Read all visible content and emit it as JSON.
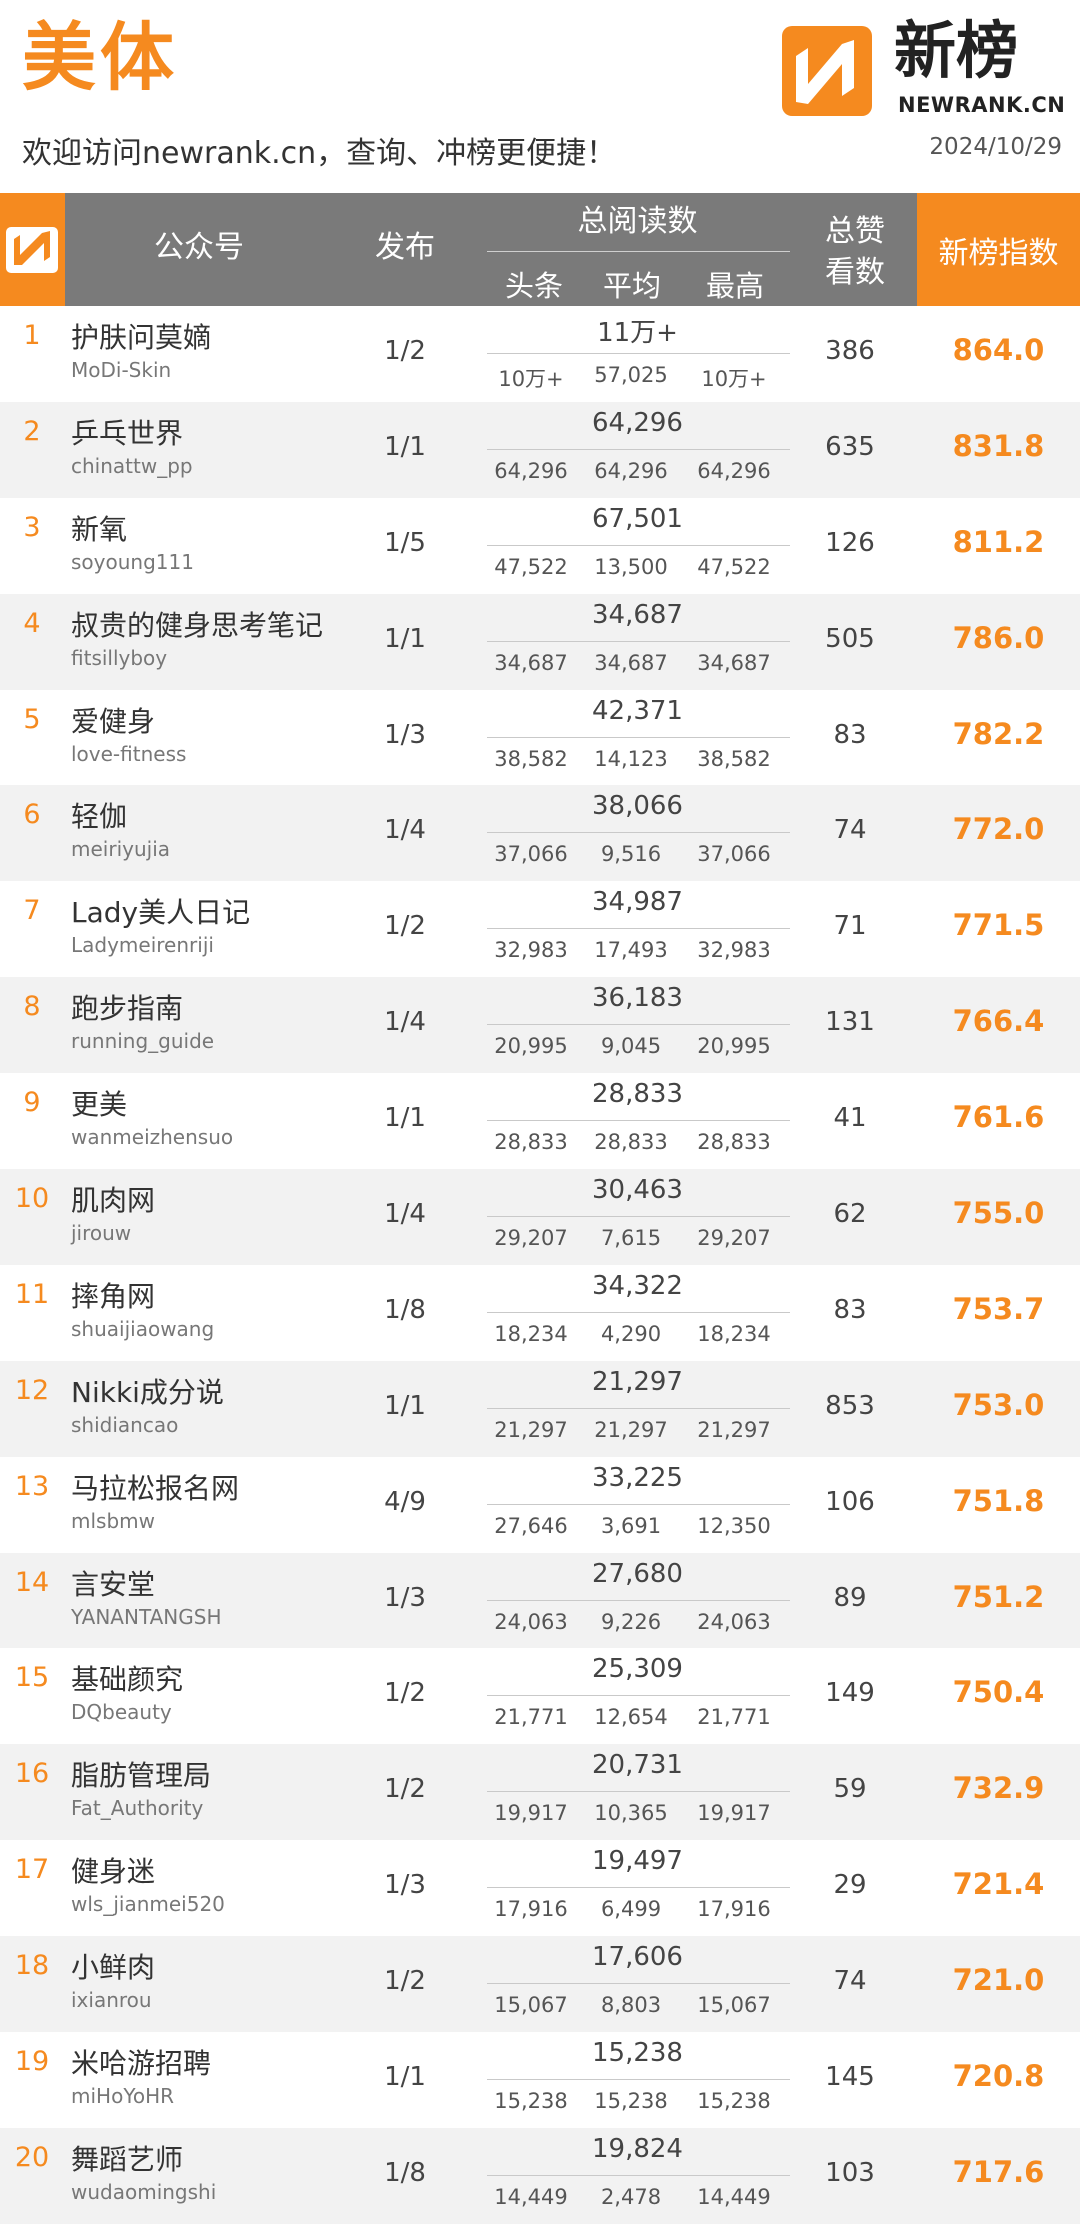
{
  "header": {
    "category": "美体",
    "slogan": "欢迎访问newrank.cn，查询、冲榜更便捷！",
    "date": "2024/10/29",
    "logo_cn": "新榜",
    "logo_en": "NEWRANK.CN"
  },
  "columns": {
    "account": "公众号",
    "publish": "发布",
    "reads": "总阅读数",
    "reads_head": "头条",
    "reads_avg": "平均",
    "reads_max": "最高",
    "likes_l1": "总赞",
    "likes_l2": "看数",
    "index": "新榜指数"
  },
  "colors": {
    "accent": "#f58a1f",
    "header_bg": "#7a7a7a",
    "row_alt": "#f2f2f2"
  },
  "rows": [
    {
      "rank": "1",
      "name": "护肤问莫嫡",
      "account": "MoDi-Skin",
      "publish": "1/2",
      "total": "11万+",
      "head": "10万+",
      "avg": "57,025",
      "max": "10万+",
      "likes": "386",
      "index": "864.0"
    },
    {
      "rank": "2",
      "name": "乒乓世界",
      "account": "chinattw_pp",
      "publish": "1/1",
      "total": "64,296",
      "head": "64,296",
      "avg": "64,296",
      "max": "64,296",
      "likes": "635",
      "index": "831.8"
    },
    {
      "rank": "3",
      "name": "新氧",
      "account": "soyoung111",
      "publish": "1/5",
      "total": "67,501",
      "head": "47,522",
      "avg": "13,500",
      "max": "47,522",
      "likes": "126",
      "index": "811.2"
    },
    {
      "rank": "4",
      "name": "叔贵的健身思考笔记",
      "account": "fitsillyboy",
      "publish": "1/1",
      "total": "34,687",
      "head": "34,687",
      "avg": "34,687",
      "max": "34,687",
      "likes": "505",
      "index": "786.0"
    },
    {
      "rank": "5",
      "name": "爱健身",
      "account": "love-fitness",
      "publish": "1/3",
      "total": "42,371",
      "head": "38,582",
      "avg": "14,123",
      "max": "38,582",
      "likes": "83",
      "index": "782.2"
    },
    {
      "rank": "6",
      "name": "轻伽",
      "account": "meiriyujia",
      "publish": "1/4",
      "total": "38,066",
      "head": "37,066",
      "avg": "9,516",
      "max": "37,066",
      "likes": "74",
      "index": "772.0"
    },
    {
      "rank": "7",
      "name": "Lady美人日记",
      "account": "Ladymeirenriji",
      "publish": "1/2",
      "total": "34,987",
      "head": "32,983",
      "avg": "17,493",
      "max": "32,983",
      "likes": "71",
      "index": "771.5"
    },
    {
      "rank": "8",
      "name": "跑步指南",
      "account": "running_guide",
      "publish": "1/4",
      "total": "36,183",
      "head": "20,995",
      "avg": "9,045",
      "max": "20,995",
      "likes": "131",
      "index": "766.4"
    },
    {
      "rank": "9",
      "name": "更美",
      "account": "wanmeizhensuo",
      "publish": "1/1",
      "total": "28,833",
      "head": "28,833",
      "avg": "28,833",
      "max": "28,833",
      "likes": "41",
      "index": "761.6"
    },
    {
      "rank": "10",
      "name": "肌肉网",
      "account": "jirouw",
      "publish": "1/4",
      "total": "30,463",
      "head": "29,207",
      "avg": "7,615",
      "max": "29,207",
      "likes": "62",
      "index": "755.0"
    },
    {
      "rank": "11",
      "name": "摔角网",
      "account": "shuaijiaowang",
      "publish": "1/8",
      "total": "34,322",
      "head": "18,234",
      "avg": "4,290",
      "max": "18,234",
      "likes": "83",
      "index": "753.7"
    },
    {
      "rank": "12",
      "name": "Nikki成分说",
      "account": "shidiancao",
      "publish": "1/1",
      "total": "21,297",
      "head": "21,297",
      "avg": "21,297",
      "max": "21,297",
      "likes": "853",
      "index": "753.0"
    },
    {
      "rank": "13",
      "name": "马拉松报名网",
      "account": "mlsbmw",
      "publish": "4/9",
      "total": "33,225",
      "head": "27,646",
      "avg": "3,691",
      "max": "12,350",
      "likes": "106",
      "index": "751.8"
    },
    {
      "rank": "14",
      "name": "言安堂",
      "account": "YANANTANGSH",
      "publish": "1/3",
      "total": "27,680",
      "head": "24,063",
      "avg": "9,226",
      "max": "24,063",
      "likes": "89",
      "index": "751.2"
    },
    {
      "rank": "15",
      "name": "基础颜究",
      "account": "DQbeauty",
      "publish": "1/2",
      "total": "25,309",
      "head": "21,771",
      "avg": "12,654",
      "max": "21,771",
      "likes": "149",
      "index": "750.4"
    },
    {
      "rank": "16",
      "name": "脂肪管理局",
      "account": "Fat_Authority",
      "publish": "1/2",
      "total": "20,731",
      "head": "19,917",
      "avg": "10,365",
      "max": "19,917",
      "likes": "59",
      "index": "732.9"
    },
    {
      "rank": "17",
      "name": "健身迷",
      "account": "wls_jianmei520",
      "publish": "1/3",
      "total": "19,497",
      "head": "17,916",
      "avg": "6,499",
      "max": "17,916",
      "likes": "29",
      "index": "721.4"
    },
    {
      "rank": "18",
      "name": "小鲜肉",
      "account": "ixianrou",
      "publish": "1/2",
      "total": "17,606",
      "head": "15,067",
      "avg": "8,803",
      "max": "15,067",
      "likes": "74",
      "index": "721.0"
    },
    {
      "rank": "19",
      "name": "米哈游招聘",
      "account": "miHoYoHR",
      "publish": "1/1",
      "total": "15,238",
      "head": "15,238",
      "avg": "15,238",
      "max": "15,238",
      "likes": "145",
      "index": "720.8"
    },
    {
      "rank": "20",
      "name": "舞蹈艺师",
      "account": "wudaomingshi",
      "publish": "1/8",
      "total": "19,824",
      "head": "14,449",
      "avg": "2,478",
      "max": "14,449",
      "likes": "103",
      "index": "717.6"
    }
  ]
}
